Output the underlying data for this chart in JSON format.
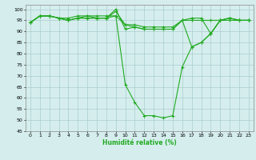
{
  "title": "",
  "xlabel": "Humidité relative (%)",
  "ylabel": "",
  "background_color": "#d5eeed",
  "grid_color": "#aacccc",
  "line_color": "#22aa22",
  "marker_color": "#22aa22",
  "xlim": [
    -0.5,
    23.5
  ],
  "ylim": [
    45,
    102
  ],
  "yticks": [
    45,
    50,
    55,
    60,
    65,
    70,
    75,
    80,
    85,
    90,
    95,
    100
  ],
  "xticks": [
    0,
    1,
    2,
    3,
    4,
    5,
    6,
    7,
    8,
    9,
    10,
    11,
    12,
    13,
    14,
    15,
    16,
    17,
    18,
    19,
    20,
    21,
    22,
    23
  ],
  "curves": [
    {
      "x": [
        0,
        1,
        2,
        3,
        4,
        5,
        6,
        7,
        8,
        9,
        10,
        11,
        12,
        13,
        14,
        15,
        16,
        17,
        18,
        19,
        20,
        21,
        22,
        23
      ],
      "y": [
        94,
        97,
        97,
        96,
        95,
        96,
        96,
        96,
        96,
        100,
        91,
        92,
        91,
        91,
        91,
        91,
        95,
        95,
        95,
        95,
        95,
        95,
        95,
        95
      ]
    },
    {
      "x": [
        0,
        1,
        2,
        3,
        4,
        5,
        6,
        7,
        8,
        9,
        10,
        11,
        12,
        13,
        14,
        15,
        16,
        17,
        18,
        19,
        20,
        21,
        22,
        23
      ],
      "y": [
        94,
        97,
        97,
        96,
        95,
        96,
        97,
        96,
        96,
        99,
        93,
        93,
        92,
        92,
        92,
        92,
        95,
        96,
        96,
        89,
        95,
        96,
        95,
        95
      ]
    },
    {
      "x": [
        0,
        1,
        2,
        3,
        4,
        5,
        6,
        7,
        8,
        9,
        10,
        11,
        12,
        13,
        14,
        15,
        16,
        17,
        18,
        19,
        20,
        21,
        22,
        23
      ],
      "y": [
        94,
        97,
        97,
        96,
        96,
        97,
        97,
        97,
        97,
        97,
        66,
        58,
        52,
        52,
        51,
        52,
        74,
        83,
        85,
        89,
        95,
        96,
        95,
        95
      ]
    },
    {
      "x": [
        0,
        1,
        2,
        3,
        4,
        5,
        6,
        7,
        8,
        9,
        10,
        11,
        12,
        13,
        14,
        15,
        16,
        17,
        18,
        19,
        20,
        21,
        22,
        23
      ],
      "y": [
        94,
        97,
        97,
        96,
        95,
        96,
        96,
        96,
        96,
        97,
        93,
        92,
        91,
        91,
        91,
        91,
        95,
        83,
        85,
        89,
        95,
        96,
        95,
        95
      ]
    }
  ]
}
